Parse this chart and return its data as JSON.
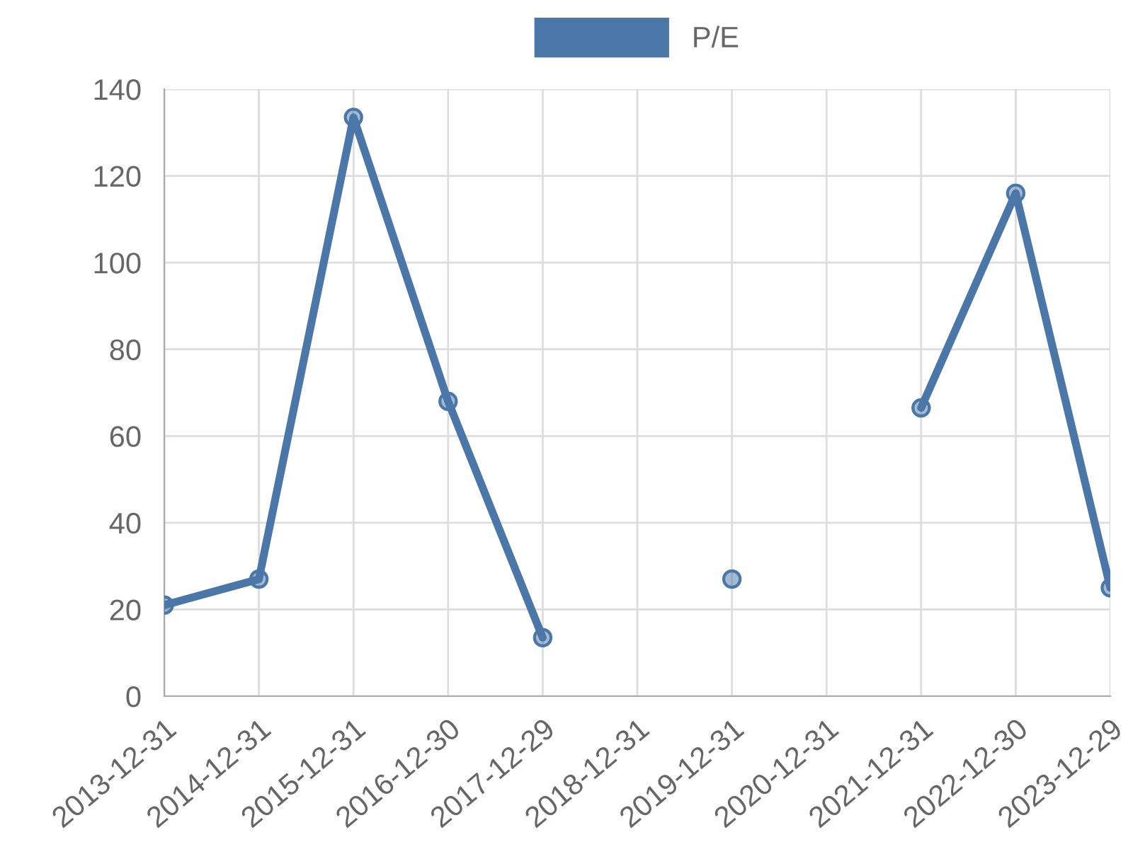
{
  "chart_data": {
    "type": "line",
    "categories": [
      "2013-12-31",
      "2014-12-31",
      "2015-12-31",
      "2016-12-30",
      "2017-12-29",
      "2018-12-31",
      "2019-12-31",
      "2020-12-31",
      "2021-12-31",
      "2022-12-30",
      "2023-12-29"
    ],
    "series": [
      {
        "name": "P/E",
        "color": "#4a76a8",
        "values": [
          21,
          27,
          133.5,
          68,
          13.5,
          null,
          27,
          null,
          66.5,
          116,
          25
        ]
      }
    ],
    "ylim": [
      0,
      140
    ],
    "yticks": [
      0,
      20,
      40,
      60,
      80,
      100,
      120,
      140
    ],
    "grid": true,
    "legend": "top",
    "marker": "circle",
    "line_style": "solid"
  }
}
